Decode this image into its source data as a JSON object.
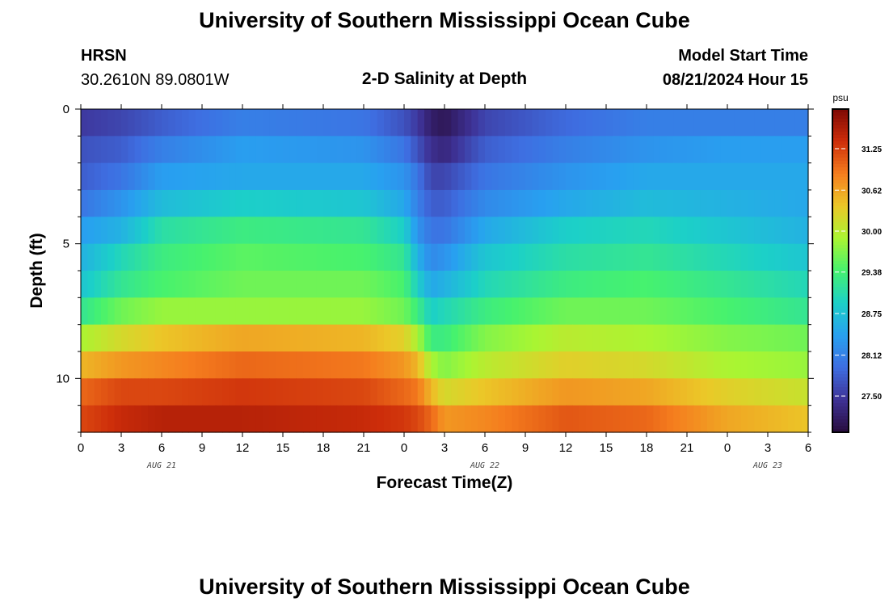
{
  "header": {
    "title": "University of Southern Mississippi Ocean Cube",
    "station": "HRSN",
    "coords": "30.2610N  89.0801W",
    "subtitle": "2-D Salinity at Depth",
    "model_start_label": "Model Start Time",
    "model_start_value": "08/21/2024 Hour 15"
  },
  "footer": {
    "title": "University of Southern Mississippi Ocean Cube"
  },
  "chart_data": {
    "type": "heatmap",
    "title": "2-D Salinity at Depth",
    "xlabel": "Forecast Time(Z)",
    "ylabel": "Depth (ft)",
    "x_ticks": [
      "0",
      "3",
      "6",
      "9",
      "12",
      "15",
      "18",
      "21",
      "0",
      "3",
      "6",
      "9",
      "12",
      "15",
      "18",
      "21",
      "0",
      "3",
      "6"
    ],
    "date_labels": [
      "AUG 21",
      "AUG 22",
      "AUG 23"
    ],
    "x_range_hours": [
      0,
      54
    ],
    "y_ticks": [
      "0",
      "5",
      "10"
    ],
    "ylim_ft": [
      0,
      12
    ],
    "colorbar": {
      "unit": "psu",
      "range": [
        26.95,
        31.85
      ],
      "ticks": [
        "27.50",
        "28.12",
        "28.75",
        "29.38",
        "30.00",
        "30.62",
        "31.25"
      ]
    },
    "depth_layers_ft": [
      0.5,
      1.5,
      2.5,
      3.5,
      4.5,
      5.5,
      6.5,
      7.5,
      8.5,
      9.5,
      10.5,
      11.5
    ],
    "salinity_control": {
      "hours": [
        0,
        3,
        6,
        12,
        21,
        24,
        25,
        26,
        27,
        30,
        36,
        42,
        48,
        54
      ],
      "layers": [
        [
          27.5,
          27.6,
          27.8,
          28.1,
          28.0,
          27.7,
          27.5,
          27.2,
          27.1,
          27.6,
          27.9,
          28.1,
          28.1,
          28.1
        ],
        [
          27.7,
          27.8,
          28.1,
          28.4,
          28.3,
          28.0,
          27.7,
          27.4,
          27.3,
          27.8,
          28.1,
          28.3,
          28.4,
          28.4
        ],
        [
          27.8,
          28.0,
          28.4,
          28.5,
          28.5,
          28.3,
          28.0,
          27.6,
          27.6,
          28.0,
          28.3,
          28.5,
          28.5,
          28.5
        ],
        [
          28.0,
          28.3,
          28.7,
          28.9,
          28.8,
          28.5,
          28.1,
          27.8,
          27.8,
          28.2,
          28.5,
          28.7,
          28.6,
          28.5
        ],
        [
          28.4,
          28.6,
          29.1,
          29.3,
          29.2,
          28.9,
          28.3,
          28.0,
          28.0,
          28.5,
          28.9,
          29.0,
          28.8,
          28.6
        ],
        [
          28.6,
          29.0,
          29.3,
          29.5,
          29.4,
          29.2,
          28.6,
          28.2,
          28.3,
          28.8,
          29.1,
          29.2,
          29.0,
          28.8
        ],
        [
          28.8,
          29.2,
          29.4,
          29.6,
          29.6,
          29.4,
          28.9,
          28.5,
          28.6,
          29.0,
          29.3,
          29.4,
          29.2,
          29.0
        ],
        [
          29.2,
          29.6,
          29.8,
          29.8,
          29.8,
          29.6,
          29.3,
          28.9,
          29.0,
          29.3,
          29.6,
          29.6,
          29.4,
          29.2
        ],
        [
          29.9,
          30.2,
          30.4,
          30.6,
          30.5,
          30.3,
          29.9,
          29.3,
          29.3,
          29.7,
          30.0,
          29.9,
          29.7,
          29.6
        ],
        [
          30.5,
          30.7,
          30.8,
          31.0,
          30.9,
          30.7,
          30.5,
          29.9,
          29.7,
          30.0,
          30.3,
          30.2,
          29.9,
          29.8
        ],
        [
          31.0,
          31.2,
          31.2,
          31.3,
          31.2,
          31.0,
          30.9,
          30.5,
          30.2,
          30.4,
          30.7,
          30.6,
          30.3,
          30.1
        ],
        [
          31.2,
          31.4,
          31.5,
          31.5,
          31.4,
          31.3,
          31.2,
          31.0,
          30.7,
          30.8,
          31.1,
          31.0,
          30.6,
          30.4
        ]
      ]
    }
  }
}
